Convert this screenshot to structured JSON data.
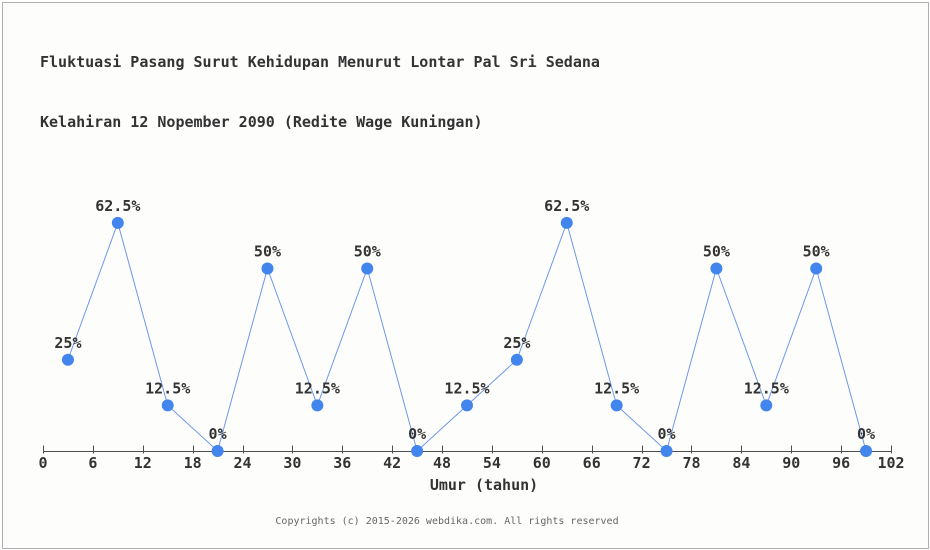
{
  "page": {
    "background": "#fdfdfc",
    "border_color": "#b0b0b0"
  },
  "chart_data": {
    "type": "line",
    "title": "Fluktuasi Pasang Surut Kehidupan Menurut Lontar Pal Sri Sedana",
    "subtitle": "Kelahiran 12 Nopember 2090 (Redite Wage Kuningan)",
    "xlabel": "Umur (tahun)",
    "x": [
      3,
      9,
      15,
      21,
      27,
      33,
      39,
      45,
      51,
      57,
      63,
      69,
      75,
      81,
      87,
      93,
      99
    ],
    "values": [
      25,
      62.5,
      12.5,
      0,
      50,
      12.5,
      50,
      0,
      12.5,
      25,
      62.5,
      12.5,
      0,
      50,
      12.5,
      50,
      0
    ],
    "point_labels": [
      "25%",
      "62.5%",
      "12.5%",
      "0%",
      "50%",
      "12.5%",
      "50%",
      "0%",
      "12.5%",
      "25%",
      "62.5%",
      "12.5%",
      "0%",
      "50%",
      "12.5%",
      "50%",
      "0%"
    ],
    "x_ticks": [
      0,
      6,
      12,
      18,
      24,
      30,
      36,
      42,
      48,
      54,
      60,
      66,
      72,
      78,
      84,
      90,
      96,
      102
    ],
    "xlim": [
      0,
      102
    ],
    "ylim": [
      0,
      100
    ],
    "grid": false,
    "legend": false,
    "line_color": "#6d98e8",
    "marker_color": "#4285ec",
    "axis_color": "#4d4d4d",
    "label_color": "#333333"
  },
  "footer": {
    "text": "Copyrights (c) 2015-2026 webdika.com. All rights reserved"
  }
}
